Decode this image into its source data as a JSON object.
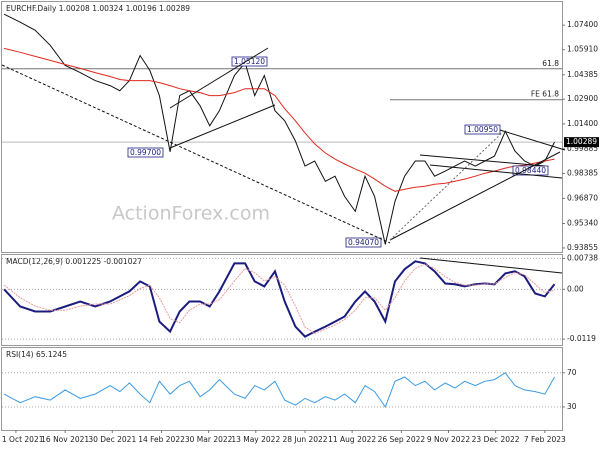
{
  "chart_data": [
    {
      "type": "line",
      "title": "EURCHF.Daily  1.00208 1.00324 1.00196 1.00289",
      "watermark": "ActionForex.com",
      "x": [
        -11,
        4,
        18,
        32,
        46,
        60,
        74,
        88,
        97,
        106,
        116,
        125,
        134,
        144,
        153,
        162,
        172,
        181,
        190,
        204,
        214,
        223,
        232,
        242,
        251,
        261,
        270,
        279,
        289,
        298,
        307,
        317,
        326,
        335,
        345,
        354,
        363,
        373,
        382,
        391,
        401,
        410,
        419,
        429,
        438,
        447,
        457,
        466,
        475,
        485,
        494,
        503
      ],
      "series": [
        {
          "color": "#111111",
          "values": [
            1.0807,
            1.0758,
            1.0709,
            1.0618,
            1.0495,
            1.0452,
            1.0403,
            1.0373,
            1.0342,
            1.0403,
            1.0556,
            1.0465,
            1.0312,
            0.997,
            1.0312,
            1.0342,
            1.025,
            1.0128,
            1.022,
            1.0434,
            1.0512,
            1.0312,
            1.0434,
            1.022,
            1.0159,
            1.0036,
            0.9883,
            0.9914,
            0.9791,
            0.9822,
            0.9699,
            0.9608,
            0.9822,
            0.9699,
            0.9407,
            0.9669,
            0.9822,
            0.9914,
            0.9914,
            0.9822,
            0.9853,
            0.9883,
            0.9914,
            0.9883,
            0.9914,
            0.9944,
            1.0095,
            0.9975,
            0.9914,
            0.9883,
            0.9914,
            1.0029
          ]
        },
        {
          "color": "#e0291e",
          "values": [
            1.0599,
            1.0575,
            1.055,
            1.0526,
            1.0501,
            1.0477,
            1.0452,
            1.0428,
            1.041,
            1.0403,
            1.0403,
            1.0403,
            1.0391,
            1.0373,
            1.0354,
            1.0342,
            1.033,
            1.0312,
            1.0312,
            1.033,
            1.0354,
            1.0354,
            1.0354,
            1.0312,
            1.0232,
            1.0159,
            1.0085,
            1.0018,
            0.9963,
            0.9926,
            0.9896,
            0.9865,
            0.984,
            0.9804,
            0.9761,
            0.973,
            0.9742,
            0.9755,
            0.9761,
            0.9773,
            0.9779,
            0.9791,
            0.9804,
            0.9822,
            0.984,
            0.9853,
            0.9871,
            0.9883,
            0.9889,
            0.9902,
            0.9914,
            0.9926
          ]
        }
      ],
      "xlim": [
        -13,
        510
      ],
      "ylim": [
        0.9361,
        1.0881
      ],
      "grid": false,
      "yticks": [
        {
          "value": 1.074,
          "label": "1.07400"
        },
        {
          "value": 1.0591,
          "label": "1.05910"
        },
        {
          "value": 1.04385,
          "label": "1.04385"
        },
        {
          "value": 1.029,
          "label": "1.02900"
        },
        {
          "value": 1.014,
          "label": "1.01400"
        },
        {
          "value": 0.99885,
          "label": "0.99885"
        },
        {
          "value": 0.98385,
          "label": "0.98385"
        },
        {
          "value": 0.9687,
          "label": "0.96870"
        },
        {
          "value": 0.9534,
          "label": "0.95340"
        },
        {
          "value": 0.93855,
          "label": "0.93855"
        }
      ],
      "levels": [
        {
          "value": 1.0475,
          "label": "61.8"
        },
        {
          "value": 1.0287,
          "label": "FE 61.8"
        }
      ],
      "current": {
        "value": 1.00289,
        "label": "1.00289"
      },
      "annotations": [
        {
          "label": "1.05120"
        },
        {
          "label": "0.99700"
        },
        {
          "label": "0.94070"
        },
        {
          "label": "1.00950"
        },
        {
          "label": "0.98440"
        }
      ]
    },
    {
      "type": "line",
      "title": "MACD(12,26,9) 0.001225 -0.001027",
      "x": [
        -11,
        4,
        18,
        32,
        46,
        60,
        74,
        88,
        97,
        106,
        116,
        125,
        134,
        144,
        153,
        162,
        172,
        181,
        190,
        204,
        214,
        223,
        232,
        242,
        251,
        261,
        270,
        279,
        289,
        298,
        307,
        317,
        326,
        335,
        345,
        354,
        363,
        373,
        382,
        391,
        401,
        410,
        419,
        429,
        438,
        447,
        457,
        466,
        475,
        485,
        494,
        503
      ],
      "series": [
        {
          "color": "#1c1c80",
          "values": [
            0,
            -0.0041,
            -0.0053,
            -0.0053,
            -0.0041,
            -0.0029,
            -0.0041,
            -0.0029,
            -0.0017,
            -0.0005,
            0.0019,
            0.0007,
            -0.0077,
            -0.0101,
            -0.0053,
            -0.0029,
            -0.0029,
            -0.0041,
            -0.0005,
            0.0062,
            0.0062,
            0.0019,
            0.0007,
            0.0043,
            -0.0029,
            -0.0089,
            -0.0113,
            -0.0101,
            -0.0089,
            -0.0077,
            -0.0065,
            -0.0029,
            -0.0005,
            -0.0029,
            -0.0077,
            0.0019,
            0.0048,
            0.0067,
            0.0062,
            0.0043,
            0.0014,
            0.0012,
            0.0007,
            0.0012,
            0.0014,
            0.0012,
            0.0038,
            0.0043,
            0.0031,
            -0.001,
            -0.0017,
            0.0012
          ]
        },
        {
          "color": "#e89a9a",
          "values": [
            0.001,
            -0.002,
            -0.004,
            -0.005,
            -0.005,
            -0.004,
            -0.0035,
            -0.0035,
            -0.0025,
            -0.0015,
            0.0002,
            0.001,
            -0.002,
            -0.007,
            -0.008,
            -0.005,
            -0.0035,
            -0.0035,
            -0.0025,
            0.002,
            0.005,
            0.004,
            0.002,
            0.003,
            0.001,
            -0.004,
            -0.009,
            -0.0105,
            -0.0095,
            -0.0085,
            -0.0072,
            -0.005,
            -0.002,
            -0.002,
            -0.005,
            -0.002,
            0.002,
            0.005,
            0.006,
            0.005,
            0.003,
            0.0017,
            0.001,
            0.001,
            0.0013,
            0.0013,
            0.0028,
            0.004,
            0.0035,
            0.0012,
            -0.0008,
            -0.0002
          ]
        }
      ],
      "xlim": [
        -13,
        510
      ],
      "ylim": [
        -0.0133,
        0.0082
      ],
      "grid": true,
      "yticks": [
        {
          "value": 0.00738,
          "label": "0.00738"
        },
        {
          "value": 0,
          "label": "0.00"
        },
        -0.0119
      ]
    },
    {
      "type": "line",
      "title": "RSI(14) 65.1245",
      "x": [
        -11,
        4,
        18,
        32,
        46,
        60,
        74,
        88,
        97,
        106,
        116,
        125,
        134,
        144,
        153,
        162,
        172,
        181,
        190,
        204,
        214,
        223,
        232,
        242,
        251,
        261,
        270,
        279,
        289,
        298,
        307,
        317,
        326,
        335,
        345,
        354,
        363,
        373,
        382,
        391,
        401,
        410,
        419,
        429,
        438,
        447,
        457,
        466,
        475,
        485,
        494,
        503
      ],
      "series": [
        {
          "color": "#3d9be0",
          "values": [
            45,
            35,
            42,
            38,
            50,
            40,
            45,
            55,
            48,
            58,
            45,
            35,
            60,
            45,
            55,
            60,
            42,
            50,
            62,
            45,
            40,
            55,
            50,
            60,
            38,
            32,
            40,
            35,
            42,
            38,
            45,
            35,
            55,
            48,
            30,
            60,
            65,
            55,
            60,
            50,
            58,
            52,
            60,
            55,
            60,
            62,
            70,
            55,
            50,
            48,
            45,
            65
          ]
        }
      ],
      "xlim": [
        -13,
        510
      ],
      "ylim": [
        3,
        99
      ],
      "grid": true,
      "yticks": [
        70,
        30
      ],
      "xticks": [
        {
          "value": 0,
          "label": "1 Oct 2021"
        },
        {
          "value": 46,
          "label": "16 Nov 2021"
        },
        {
          "value": 90,
          "label": "30 Dec 2021"
        },
        {
          "value": 136,
          "label": "14 Feb 2022"
        },
        {
          "value": 180,
          "label": "30 Mar 2022"
        },
        {
          "value": 224,
          "label": "13 May 2022"
        },
        {
          "value": 270,
          "label": "28 Jun 2022"
        },
        {
          "value": 314,
          "label": "11 Aug 2022"
        },
        {
          "value": 360,
          "label": "26 Sep 2022"
        },
        {
          "value": 404,
          "label": "9 Nov 2022"
        },
        {
          "value": 448,
          "label": "23 Dec 2022"
        },
        {
          "value": 494,
          "label": "7 Feb 2023"
        }
      ]
    }
  ]
}
